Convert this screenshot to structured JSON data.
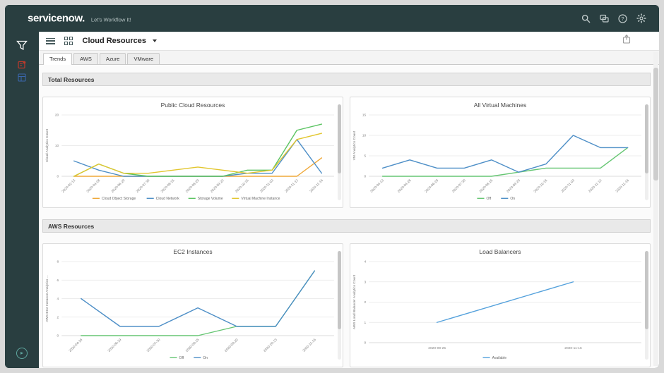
{
  "header": {
    "logo": "servicenow.",
    "tagline": "Let's Workflow It!",
    "icons": {
      "search": "search",
      "chat": "chat",
      "help": "help-circle",
      "settings": "gear"
    }
  },
  "sidebar": {
    "icons": [
      "filter",
      "report",
      "table",
      "expand"
    ]
  },
  "toolbar": {
    "title": "Cloud Resources",
    "menu_icon": "hamburger",
    "grid_icon": "app-grid",
    "share_icon": "share"
  },
  "tabs": [
    {
      "label": "Trends",
      "active": true
    },
    {
      "label": "AWS",
      "active": false
    },
    {
      "label": "Azure",
      "active": false
    },
    {
      "label": "VMware",
      "active": false
    }
  ],
  "sections": [
    {
      "title": "Total Resources"
    },
    {
      "title": "AWS Resources"
    }
  ],
  "colors": {
    "header_bg": "#293E40",
    "blue": "#4E8FC7",
    "green": "#5BC462",
    "light_green": "#66C673",
    "orange": "#EFA838",
    "yellow": "#E2C62E",
    "lb_blue": "#54A1DC"
  },
  "chart_data": [
    {
      "type": "line",
      "title": "Public Cloud Resources",
      "ylabel": "Cloud Analytics Count",
      "ylim": [
        0,
        20
      ],
      "yticks": [
        0,
        10,
        20
      ],
      "rotate_x": true,
      "legend_position": "bottom",
      "categories": [
        "2020-02-13",
        "2020-04-28",
        "2020-06-29",
        "2020-07-30",
        "2020-08-15",
        "2020-08-29",
        "2020-09-22",
        "2020-10-15",
        "2020-11-03",
        "2020-11-12",
        "2020-11-16"
      ],
      "series": [
        {
          "name": "Cloud Object Storage",
          "color": "#EFA838",
          "values": [
            0,
            0,
            0,
            0,
            0,
            0,
            0,
            0,
            0,
            0,
            6
          ]
        },
        {
          "name": "Cloud Network",
          "color": "#4E8FC7",
          "values": [
            5,
            2,
            0,
            0,
            0,
            0,
            0,
            1,
            1,
            12,
            1
          ]
        },
        {
          "name": "Storage Volume",
          "color": "#5BC462",
          "values": [
            0,
            4,
            1,
            0,
            0,
            0,
            0,
            2,
            2,
            15,
            17
          ]
        },
        {
          "name": "Virtual Machine Instance",
          "color": "#E2C62E",
          "values": [
            0,
            4,
            1,
            1,
            2,
            3,
            2,
            1,
            2,
            12,
            14
          ]
        }
      ]
    },
    {
      "type": "line",
      "title": "All Virtual Machines",
      "ylabel": "VM Analytics Count",
      "ylim": [
        0,
        15
      ],
      "yticks": [
        0,
        5,
        10,
        15
      ],
      "rotate_x": true,
      "legend_position": "bottom",
      "categories": [
        "2020-04-13",
        "2020-04-26",
        "2020-06-29",
        "2020-07-30",
        "2020-08-15",
        "2020-09-20",
        "2020-10-16",
        "2020-11-03",
        "2020-11-12",
        "2020-11-16"
      ],
      "series": [
        {
          "name": "Off",
          "color": "#66C673",
          "values": [
            0,
            0,
            0,
            0,
            0,
            1,
            2,
            2,
            2,
            7
          ]
        },
        {
          "name": "On",
          "color": "#4E8FC7",
          "values": [
            2,
            4,
            2,
            2,
            4,
            1,
            3,
            10,
            7,
            7
          ]
        }
      ]
    },
    {
      "type": "line",
      "title": "EC2 Instances",
      "ylabel": "AWS EC2 Instance Analytics ...",
      "ylim": [
        0,
        8
      ],
      "yticks": [
        0,
        2,
        4,
        6,
        8
      ],
      "rotate_x": true,
      "legend_position": "bottom",
      "categories": [
        "2020-04-26",
        "2020-06-29",
        "2020-07-30",
        "2020-09-15",
        "2020-09-29",
        "2020-10-13",
        "2020-11-16"
      ],
      "series": [
        {
          "name": "Off",
          "color": "#66C673",
          "values": [
            0,
            0,
            0,
            0,
            1,
            1,
            7
          ]
        },
        {
          "name": "On",
          "color": "#4E8FC7",
          "values": [
            4,
            1,
            1,
            3,
            1,
            1,
            7
          ]
        }
      ]
    },
    {
      "type": "line",
      "title": "Load Balancers",
      "ylabel": "AWS Load Balancer Analytics Count",
      "ylim": [
        0,
        4
      ],
      "yticks": [
        0,
        1,
        2,
        3,
        4
      ],
      "rotate_x": false,
      "legend_position": "bottom",
      "categories": [
        "2020-09-25",
        "2020-11-16"
      ],
      "series": [
        {
          "name": "Available",
          "color": "#54A1DC",
          "values": [
            1,
            3
          ]
        }
      ]
    }
  ]
}
